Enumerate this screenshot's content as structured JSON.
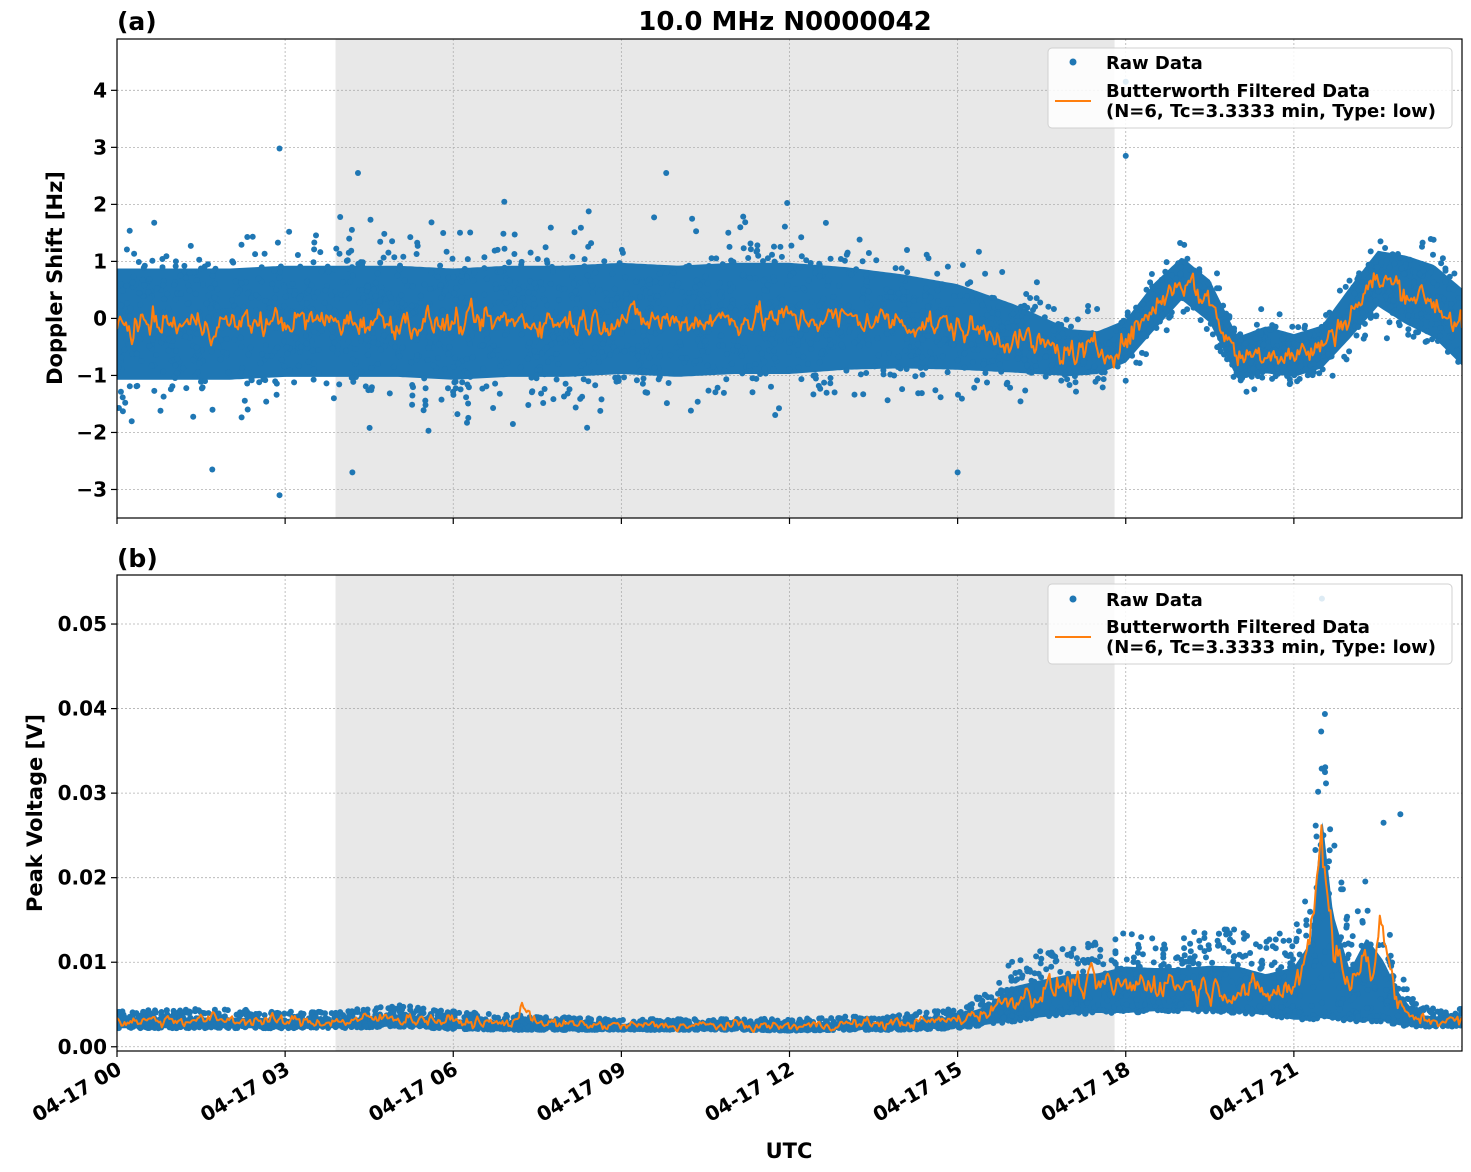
{
  "figure": {
    "title": "10.0 MHz N0000042",
    "xlabel": "UTC",
    "x_tick_labels": [
      "04-17 00",
      "04-17 03",
      "04-17 06",
      "04-17 09",
      "04-17 12",
      "04-17 15",
      "04-17 18",
      "04-17 21"
    ],
    "colors": {
      "raw": "#1f77b4",
      "filtered": "#ff7f0e",
      "shade": "#e8e8e8",
      "grid": "#b0b0b0"
    }
  },
  "chart_data": [
    {
      "type": "scatter",
      "panel_label": "(a)",
      "title": "10.0 MHz N0000042",
      "ylabel": "Doppler Shift [Hz]",
      "xlim_hours": [
        0,
        24
      ],
      "ylim": [
        -3.5,
        4.9
      ],
      "y_ticks": [
        -3,
        -2,
        -1,
        0,
        1,
        2,
        3,
        4
      ],
      "y_tick_labels": [
        "−3",
        "−2",
        "−1",
        "0",
        "1",
        "2",
        "3",
        "4"
      ],
      "shaded_region_hours": [
        3.9,
        17.8
      ],
      "grid": true,
      "legend": {
        "position": "top-right",
        "entries": [
          {
            "label": "Raw Data"
          },
          {
            "label": "Butterworth Filtered Data",
            "label2": "(N=6, Tc=3.3333 min, Type: low)"
          }
        ]
      },
      "series": [
        {
          "name": "Raw Data",
          "kind": "band",
          "x": [
            0,
            1,
            2,
            3,
            4,
            5,
            6,
            7,
            8,
            9,
            10,
            11,
            12,
            13,
            14,
            15,
            16,
            17,
            17.5,
            18,
            18.5,
            19,
            19.5,
            20,
            20.5,
            21,
            21.5,
            22,
            22.5,
            23,
            23.5,
            24
          ],
          "center": [
            -0.1,
            -0.1,
            -0.1,
            -0.05,
            -0.05,
            -0.05,
            -0.1,
            -0.05,
            -0.05,
            0,
            -0.05,
            0,
            0,
            0,
            -0.05,
            -0.15,
            -0.35,
            -0.6,
            -0.6,
            -0.4,
            0.2,
            0.7,
            0.3,
            -0.7,
            -0.55,
            -0.65,
            -0.5,
            0.1,
            0.7,
            0.5,
            0.3,
            -0.15
          ],
          "spread": [
            1.3,
            1.3,
            1.3,
            1.3,
            1.3,
            1.3,
            1.3,
            1.3,
            1.3,
            1.3,
            1.3,
            1.3,
            1.3,
            1.2,
            1.1,
            1.0,
            0.8,
            0.55,
            0.5,
            0.5,
            0.55,
            0.5,
            0.5,
            0.5,
            0.55,
            0.5,
            0.5,
            0.6,
            0.65,
            0.8,
            0.85,
            0.9
          ]
        },
        {
          "name": "Butterworth Filtered Data",
          "kind": "line",
          "x": [
            0,
            1,
            2,
            3,
            4,
            5,
            6,
            7,
            8,
            9,
            10,
            11,
            12,
            13,
            14,
            15,
            16,
            16.5,
            17,
            17.5,
            18,
            18.5,
            19,
            19.5,
            20,
            20.5,
            21,
            21.5,
            22,
            22.5,
            23,
            23.5,
            24
          ],
          "y": [
            -0.1,
            -0.1,
            -0.1,
            -0.05,
            -0.05,
            -0.05,
            -0.1,
            -0.05,
            -0.05,
            0,
            -0.05,
            0,
            0,
            0,
            -0.05,
            -0.15,
            -0.35,
            -0.5,
            -0.6,
            -0.6,
            -0.4,
            0.2,
            0.7,
            0.3,
            -0.7,
            -0.55,
            -0.65,
            -0.5,
            0.1,
            0.7,
            0.5,
            0.3,
            -0.15
          ]
        }
      ],
      "outliers": [
        [
          2.9,
          2.98
        ],
        [
          2.9,
          -3.1
        ],
        [
          18.0,
          4.15
        ],
        [
          18.0,
          2.85
        ],
        [
          15.0,
          -2.7
        ],
        [
          1.7,
          -2.65
        ],
        [
          4.2,
          -2.7
        ],
        [
          9.8,
          2.55
        ],
        [
          4.3,
          2.55
        ]
      ]
    },
    {
      "type": "scatter",
      "panel_label": "(b)",
      "ylabel": "Peak Voltage [V]",
      "xlim_hours": [
        0,
        24
      ],
      "ylim": [
        -0.0005,
        0.0558
      ],
      "y_ticks": [
        0,
        0.01,
        0.02,
        0.03,
        0.04,
        0.05
      ],
      "y_tick_labels": [
        "0.00",
        "0.01",
        "0.02",
        "0.03",
        "0.04",
        "0.05"
      ],
      "shaded_region_hours": [
        3.9,
        17.8
      ],
      "grid": true,
      "legend": {
        "position": "top-right",
        "entries": [
          {
            "label": "Raw Data"
          },
          {
            "label": "Butterworth Filtered Data",
            "label2": "(N=6, Tc=3.3333 min, Type: low)"
          }
        ]
      },
      "series": [
        {
          "name": "Raw Data",
          "kind": "band",
          "x": [
            0,
            1,
            2,
            3,
            4,
            5,
            6,
            7,
            8,
            9,
            10,
            11,
            12,
            13,
            14,
            15,
            15.5,
            16,
            16.5,
            17,
            17.5,
            18,
            18.5,
            19,
            19.5,
            20,
            20.5,
            21,
            21.3,
            21.5,
            21.7,
            22,
            22.3,
            22.6,
            22.9,
            23.2,
            23.5,
            24
          ],
          "low": [
            0.0022,
            0.0022,
            0.0022,
            0.0022,
            0.0022,
            0.0024,
            0.0021,
            0.002,
            0.002,
            0.002,
            0.002,
            0.002,
            0.0019,
            0.002,
            0.002,
            0.0022,
            0.0026,
            0.003,
            0.0035,
            0.0038,
            0.004,
            0.004,
            0.0042,
            0.0042,
            0.0042,
            0.004,
            0.0038,
            0.0032,
            0.0032,
            0.0034,
            0.0032,
            0.003,
            0.003,
            0.003,
            0.0025,
            0.0024,
            0.0024,
            0.0024
          ],
          "high": [
            0.0042,
            0.0045,
            0.0045,
            0.0042,
            0.0042,
            0.005,
            0.0042,
            0.0038,
            0.0035,
            0.0033,
            0.0033,
            0.0033,
            0.0033,
            0.0036,
            0.0038,
            0.0048,
            0.0065,
            0.0105,
            0.0115,
            0.0125,
            0.0125,
            0.014,
            0.0135,
            0.0135,
            0.014,
            0.014,
            0.0125,
            0.0145,
            0.02,
            0.047,
            0.026,
            0.014,
            0.021,
            0.016,
            0.009,
            0.005,
            0.0045,
            0.0045
          ]
        },
        {
          "name": "Butterworth Filtered Data",
          "kind": "line",
          "x": [
            0,
            1,
            2,
            3,
            4,
            5,
            6,
            7,
            7.3,
            7.6,
            8,
            9,
            10,
            11,
            12,
            13,
            14,
            15,
            15.5,
            16,
            16.5,
            17,
            17.5,
            18,
            18.5,
            19,
            19.5,
            20,
            20.5,
            21,
            21.2,
            21.4,
            21.5,
            21.7,
            22,
            22.2,
            22.4,
            22.6,
            22.8,
            23,
            23.5,
            24
          ],
          "y": [
            0.003,
            0.0032,
            0.0032,
            0.003,
            0.003,
            0.0035,
            0.003,
            0.0027,
            0.0045,
            0.0028,
            0.0026,
            0.0025,
            0.0025,
            0.0025,
            0.0024,
            0.0027,
            0.0028,
            0.0032,
            0.0042,
            0.0058,
            0.0065,
            0.0075,
            0.0072,
            0.007,
            0.0078,
            0.0075,
            0.007,
            0.0068,
            0.0062,
            0.0068,
            0.0105,
            0.02,
            0.0265,
            0.012,
            0.0065,
            0.0125,
            0.009,
            0.0145,
            0.006,
            0.0035,
            0.0032,
            0.003
          ]
        }
      ],
      "outliers": [
        [
          21.5,
          0.053
        ],
        [
          22.9,
          0.0275
        ],
        [
          22.6,
          0.0265
        ]
      ]
    }
  ]
}
